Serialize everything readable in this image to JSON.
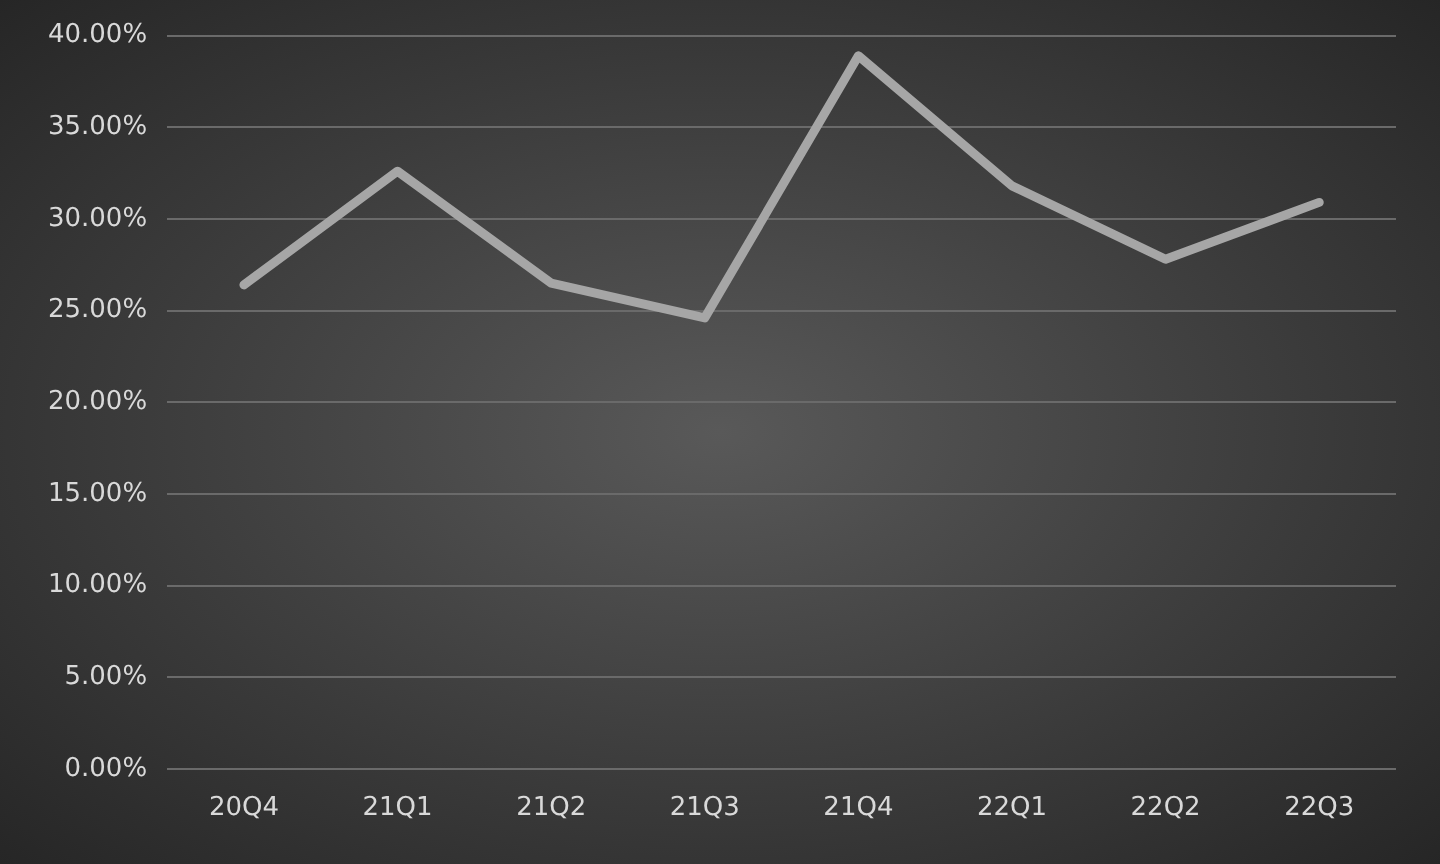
{
  "chart_data": {
    "type": "line",
    "categories": [
      "20Q4",
      "21Q1",
      "21Q2",
      "21Q3",
      "21Q4",
      "22Q1",
      "22Q2",
      "22Q3"
    ],
    "series": [
      {
        "color": "#a6a6a6",
        "values": [
          26.4,
          32.6,
          26.5,
          24.6,
          38.9,
          31.8,
          27.8,
          30.9
        ]
      }
    ],
    "ylim": [
      0,
      40
    ],
    "yticks": [
      {
        "value": 0,
        "label": "0.00%"
      },
      {
        "value": 5,
        "label": "5.00%"
      },
      {
        "value": 10,
        "label": "10.00%"
      },
      {
        "value": 15,
        "label": "15.00%"
      },
      {
        "value": 20,
        "label": "20.00%"
      },
      {
        "value": 25,
        "label": "25.00%"
      },
      {
        "value": 30,
        "label": "30.00%"
      },
      {
        "value": 35,
        "label": "35.00%"
      },
      {
        "value": 40,
        "label": "40.00%"
      }
    ],
    "grid": "y",
    "legend": false,
    "marker": "none",
    "line_style": "solid"
  }
}
